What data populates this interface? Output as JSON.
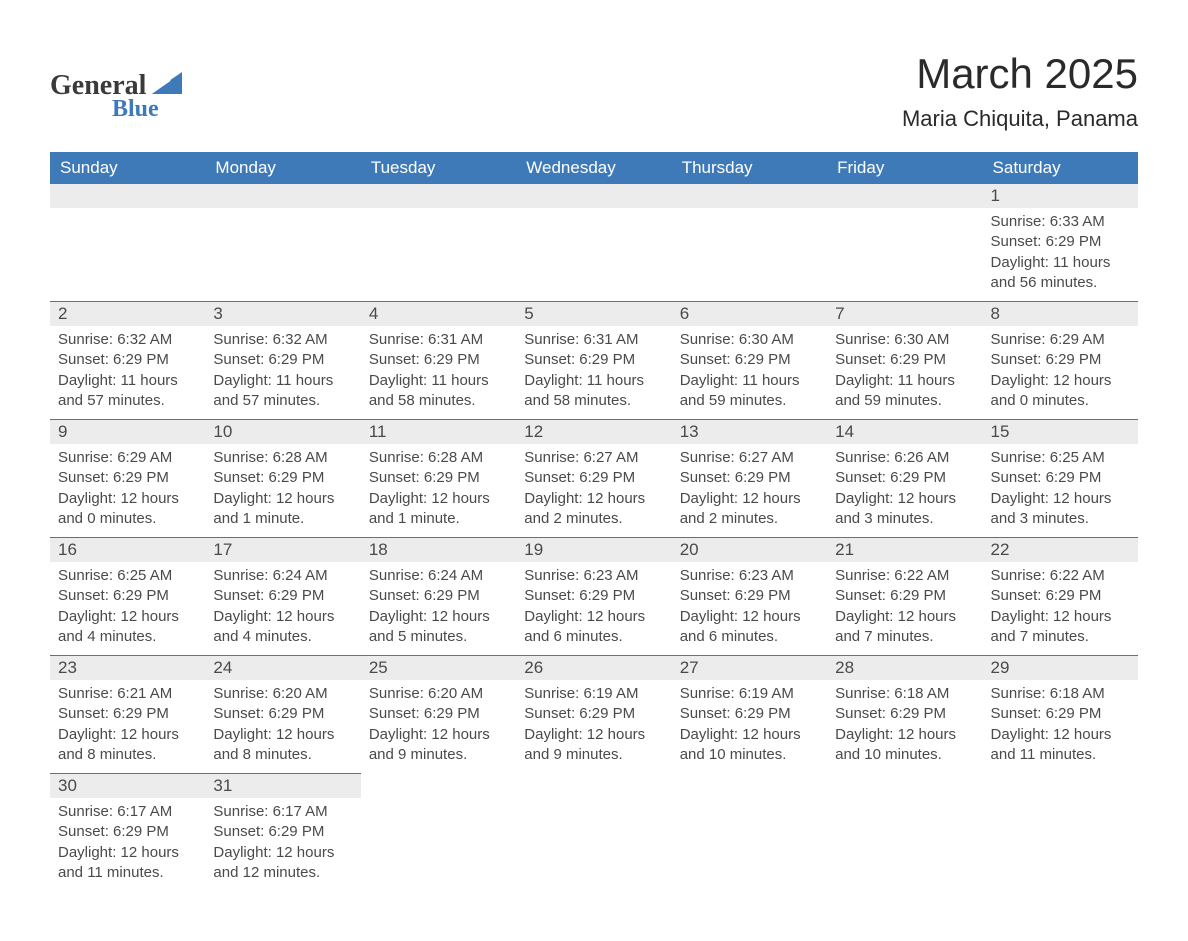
{
  "brand": {
    "general": "General",
    "blue": "Blue"
  },
  "title": "March 2025",
  "location": "Maria Chiquita, Panama",
  "colors": {
    "header_bg": "#3f7ab8",
    "header_text": "#ffffff",
    "daynum_bg": "#ececec",
    "row_border": "#3f7ab8",
    "body_text": "#4a4a4a",
    "page_bg": "#ffffff"
  },
  "typography": {
    "title_fontsize": 42,
    "location_fontsize": 22,
    "header_fontsize": 17,
    "daynum_fontsize": 17,
    "body_fontsize": 15
  },
  "weekdays": [
    "Sunday",
    "Monday",
    "Tuesday",
    "Wednesday",
    "Thursday",
    "Friday",
    "Saturday"
  ],
  "labels": {
    "sunrise": "Sunrise:",
    "sunset": "Sunset:",
    "daylight": "Daylight:"
  },
  "layout": {
    "first_day_column": 6,
    "total_days": 31
  },
  "days": [
    {
      "n": 1,
      "sr": "6:33 AM",
      "ss": "6:29 PM",
      "dl": "11 hours and 56 minutes."
    },
    {
      "n": 2,
      "sr": "6:32 AM",
      "ss": "6:29 PM",
      "dl": "11 hours and 57 minutes."
    },
    {
      "n": 3,
      "sr": "6:32 AM",
      "ss": "6:29 PM",
      "dl": "11 hours and 57 minutes."
    },
    {
      "n": 4,
      "sr": "6:31 AM",
      "ss": "6:29 PM",
      "dl": "11 hours and 58 minutes."
    },
    {
      "n": 5,
      "sr": "6:31 AM",
      "ss": "6:29 PM",
      "dl": "11 hours and 58 minutes."
    },
    {
      "n": 6,
      "sr": "6:30 AM",
      "ss": "6:29 PM",
      "dl": "11 hours and 59 minutes."
    },
    {
      "n": 7,
      "sr": "6:30 AM",
      "ss": "6:29 PM",
      "dl": "11 hours and 59 minutes."
    },
    {
      "n": 8,
      "sr": "6:29 AM",
      "ss": "6:29 PM",
      "dl": "12 hours and 0 minutes."
    },
    {
      "n": 9,
      "sr": "6:29 AM",
      "ss": "6:29 PM",
      "dl": "12 hours and 0 minutes."
    },
    {
      "n": 10,
      "sr": "6:28 AM",
      "ss": "6:29 PM",
      "dl": "12 hours and 1 minute."
    },
    {
      "n": 11,
      "sr": "6:28 AM",
      "ss": "6:29 PM",
      "dl": "12 hours and 1 minute."
    },
    {
      "n": 12,
      "sr": "6:27 AM",
      "ss": "6:29 PM",
      "dl": "12 hours and 2 minutes."
    },
    {
      "n": 13,
      "sr": "6:27 AM",
      "ss": "6:29 PM",
      "dl": "12 hours and 2 minutes."
    },
    {
      "n": 14,
      "sr": "6:26 AM",
      "ss": "6:29 PM",
      "dl": "12 hours and 3 minutes."
    },
    {
      "n": 15,
      "sr": "6:25 AM",
      "ss": "6:29 PM",
      "dl": "12 hours and 3 minutes."
    },
    {
      "n": 16,
      "sr": "6:25 AM",
      "ss": "6:29 PM",
      "dl": "12 hours and 4 minutes."
    },
    {
      "n": 17,
      "sr": "6:24 AM",
      "ss": "6:29 PM",
      "dl": "12 hours and 4 minutes."
    },
    {
      "n": 18,
      "sr": "6:24 AM",
      "ss": "6:29 PM",
      "dl": "12 hours and 5 minutes."
    },
    {
      "n": 19,
      "sr": "6:23 AM",
      "ss": "6:29 PM",
      "dl": "12 hours and 6 minutes."
    },
    {
      "n": 20,
      "sr": "6:23 AM",
      "ss": "6:29 PM",
      "dl": "12 hours and 6 minutes."
    },
    {
      "n": 21,
      "sr": "6:22 AM",
      "ss": "6:29 PM",
      "dl": "12 hours and 7 minutes."
    },
    {
      "n": 22,
      "sr": "6:22 AM",
      "ss": "6:29 PM",
      "dl": "12 hours and 7 minutes."
    },
    {
      "n": 23,
      "sr": "6:21 AM",
      "ss": "6:29 PM",
      "dl": "12 hours and 8 minutes."
    },
    {
      "n": 24,
      "sr": "6:20 AM",
      "ss": "6:29 PM",
      "dl": "12 hours and 8 minutes."
    },
    {
      "n": 25,
      "sr": "6:20 AM",
      "ss": "6:29 PM",
      "dl": "12 hours and 9 minutes."
    },
    {
      "n": 26,
      "sr": "6:19 AM",
      "ss": "6:29 PM",
      "dl": "12 hours and 9 minutes."
    },
    {
      "n": 27,
      "sr": "6:19 AM",
      "ss": "6:29 PM",
      "dl": "12 hours and 10 minutes."
    },
    {
      "n": 28,
      "sr": "6:18 AM",
      "ss": "6:29 PM",
      "dl": "12 hours and 10 minutes."
    },
    {
      "n": 29,
      "sr": "6:18 AM",
      "ss": "6:29 PM",
      "dl": "12 hours and 11 minutes."
    },
    {
      "n": 30,
      "sr": "6:17 AM",
      "ss": "6:29 PM",
      "dl": "12 hours and 11 minutes."
    },
    {
      "n": 31,
      "sr": "6:17 AM",
      "ss": "6:29 PM",
      "dl": "12 hours and 12 minutes."
    }
  ]
}
